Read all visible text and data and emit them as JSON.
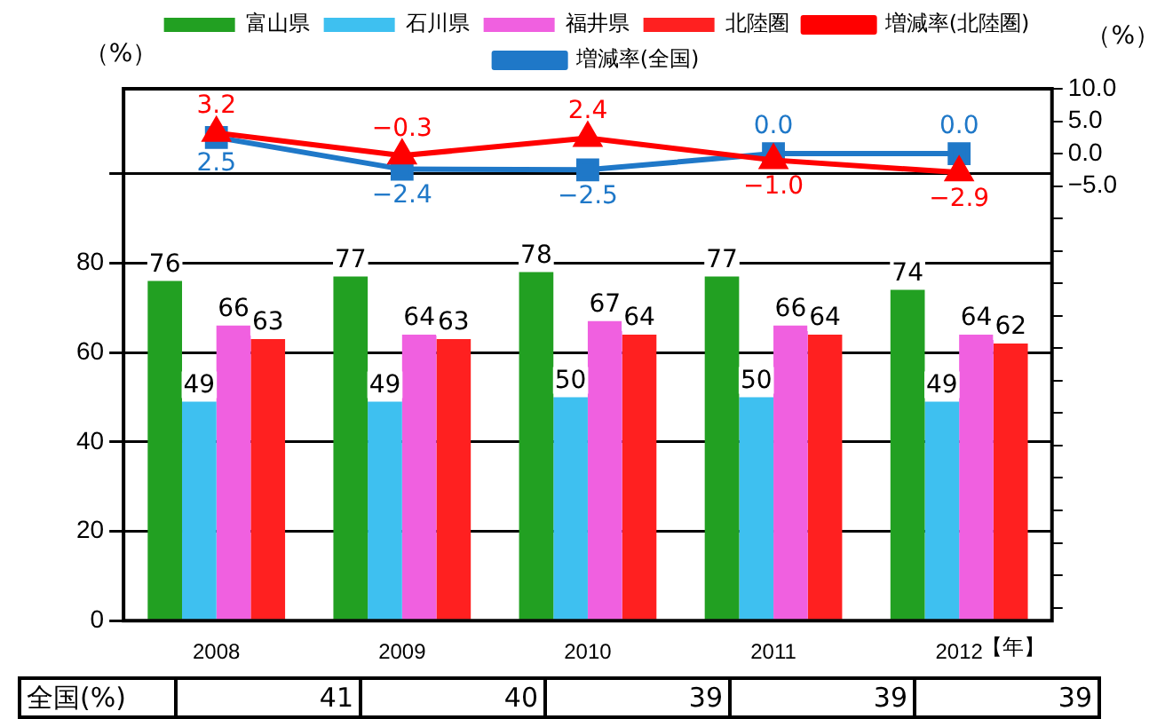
{
  "chart_data": [
    {
      "type": "bar",
      "categories": [
        "2008",
        "2009",
        "2010",
        "2011",
        "2012"
      ],
      "xlabel": "【年】",
      "ylabel": "（%）",
      "y2label": "（%）",
      "series": [
        {
          "name": "富山県",
          "color": "#22a022",
          "values": [
            76,
            77,
            78,
            77,
            74
          ]
        },
        {
          "name": "石川県",
          "color": "#3ec0f0",
          "values": [
            49,
            49,
            50,
            50,
            49
          ]
        },
        {
          "name": "福井県",
          "color": "#f060e0",
          "values": [
            66,
            64,
            67,
            66,
            64
          ]
        },
        {
          "name": "北陸圏",
          "color": "#ff2020",
          "values": [
            63,
            63,
            64,
            64,
            62
          ]
        },
        {
          "name": "増減率(北陸圏)",
          "type": "line",
          "axis": "y2",
          "marker": "triangle",
          "color": "#ff0000",
          "values": [
            3.2,
            -0.3,
            2.4,
            -1.0,
            -2.9
          ],
          "value_labels": [
            "3.2",
            "−0.3",
            "2.4",
            "−1.0",
            "−2.9"
          ]
        },
        {
          "name": "増減率(全国)",
          "type": "line",
          "axis": "y2",
          "marker": "square",
          "color": "#1f78c8",
          "values": [
            2.5,
            -2.4,
            -2.5,
            0.0,
            0.0
          ],
          "value_labels": [
            "2.5",
            "−2.4",
            "−2.5",
            "0.0",
            "0.0"
          ]
        }
      ],
      "ylim": [
        0,
        119
      ],
      "yticks": [
        0,
        20,
        40,
        60,
        80,
        {
          "value": 100,
          "label": null
        }
      ],
      "y2lim": [
        -72,
        10
      ],
      "y2ticks": [
        {
          "value": 10,
          "label": "10.0"
        },
        {
          "value": 5,
          "label": "5.0"
        },
        {
          "value": 0,
          "label": "0.0"
        },
        {
          "value": -5,
          "label": "−5.0"
        },
        {
          "value": -10,
          "label": null
        },
        {
          "value": -15,
          "label": null
        },
        {
          "value": -20,
          "label": null
        },
        {
          "value": -25,
          "label": null
        },
        {
          "value": -30,
          "label": null
        },
        {
          "value": -35,
          "label": null
        },
        {
          "value": -40,
          "label": null
        },
        {
          "value": -45,
          "label": null
        },
        {
          "value": -50,
          "label": null
        },
        {
          "value": -55,
          "label": null
        },
        {
          "value": -60,
          "label": null
        },
        {
          "value": -65,
          "label": null
        },
        {
          "value": -70,
          "label": null
        }
      ],
      "grid": "y",
      "legend": "top",
      "data_labels": true
    },
    {
      "type": "other",
      "ylabel": "全国(%)",
      "values": [
        41,
        40,
        39,
        39,
        39
      ],
      "data_labels": true
    }
  ]
}
